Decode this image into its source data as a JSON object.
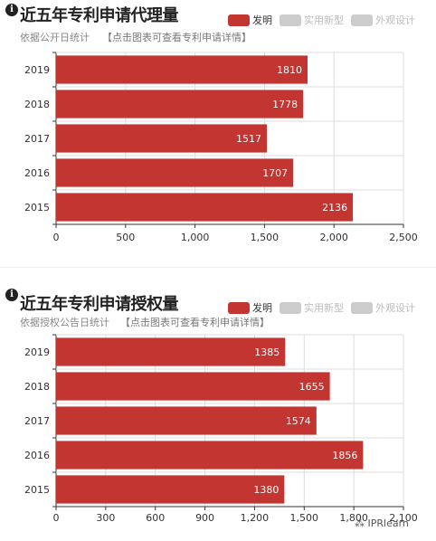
{
  "legend": [
    {
      "label": "发明",
      "color": "#c23531",
      "active": true
    },
    {
      "label": "实用新型",
      "color": "#cccccc",
      "active": false
    },
    {
      "label": "外观设计",
      "color": "#cccccc",
      "active": false
    }
  ],
  "watermark": "IPRlearn",
  "chart_data": [
    {
      "type": "bar",
      "orientation": "horizontal",
      "title": "近五年专利申请代理量",
      "subtitle": "依据公开日统计",
      "subtitle_link": "【点击图表可查看专利申请详情】",
      "categories": [
        "2019",
        "2018",
        "2017",
        "2016",
        "2015"
      ],
      "series": [
        {
          "name": "发明",
          "values": [
            1810,
            1778,
            1517,
            1707,
            2136
          ]
        }
      ],
      "xlim": [
        0,
        2500
      ],
      "xticks": [
        "0",
        "500",
        "1,000",
        "1,500",
        "2,000",
        "2,500"
      ],
      "tick_values": [
        0,
        500,
        1000,
        1500,
        2000,
        2500
      ],
      "bar_color": "#c23531",
      "grid": true
    },
    {
      "type": "bar",
      "orientation": "horizontal",
      "title": "近五年专利申请授权量",
      "subtitle": "依据授权公告日统计",
      "subtitle_link": "【点击图表可查看专利申请详情】",
      "categories": [
        "2019",
        "2018",
        "2017",
        "2016",
        "2015"
      ],
      "series": [
        {
          "name": "发明",
          "values": [
            1385,
            1655,
            1574,
            1856,
            1380
          ]
        }
      ],
      "xlim": [
        0,
        2100
      ],
      "xticks": [
        "0",
        "300",
        "600",
        "900",
        "1,200",
        "1,500",
        "1,800",
        "2,100"
      ],
      "tick_values": [
        0,
        300,
        600,
        900,
        1200,
        1500,
        1800,
        2100
      ],
      "bar_color": "#c23531",
      "grid": true
    }
  ]
}
